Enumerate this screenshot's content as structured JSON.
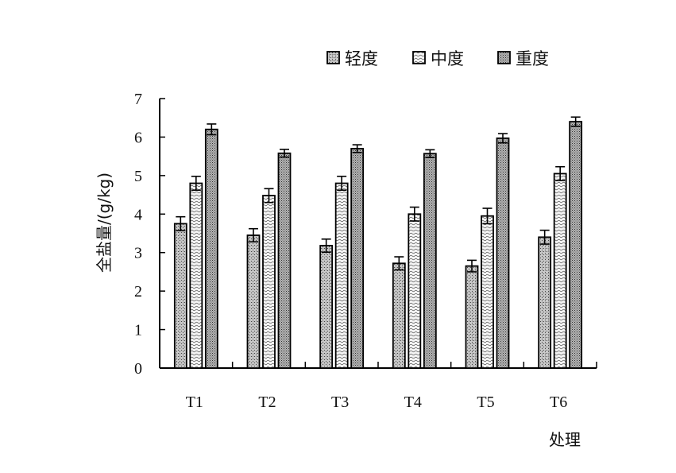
{
  "chart_data": {
    "type": "bar",
    "title": "",
    "xlabel": "处理",
    "ylabel": "全盐量/(g/kg)",
    "ylim": [
      0,
      7
    ],
    "yticks": [
      "0",
      "1",
      "2",
      "3",
      "4",
      "5",
      "6",
      "7"
    ],
    "categories": [
      "T1",
      "T2",
      "T3",
      "T4",
      "T5",
      "T6"
    ],
    "legend_position": "top",
    "error_bars": true,
    "series": [
      {
        "name": "轻度",
        "pattern": "stipple",
        "values": [
          3.75,
          3.45,
          3.18,
          2.72,
          2.65,
          3.4
        ],
        "errors": [
          0.18,
          0.17,
          0.17,
          0.17,
          0.15,
          0.18
        ]
      },
      {
        "name": "中度",
        "pattern": "wave",
        "values": [
          4.8,
          4.48,
          4.8,
          4.0,
          3.95,
          5.05
        ],
        "errors": [
          0.18,
          0.18,
          0.18,
          0.18,
          0.2,
          0.18
        ]
      },
      {
        "name": "重度",
        "pattern": "dense",
        "values": [
          6.2,
          5.58,
          5.7,
          5.57,
          5.97,
          6.4
        ],
        "errors": [
          0.14,
          0.1,
          0.1,
          0.1,
          0.12,
          0.12
        ]
      }
    ]
  }
}
